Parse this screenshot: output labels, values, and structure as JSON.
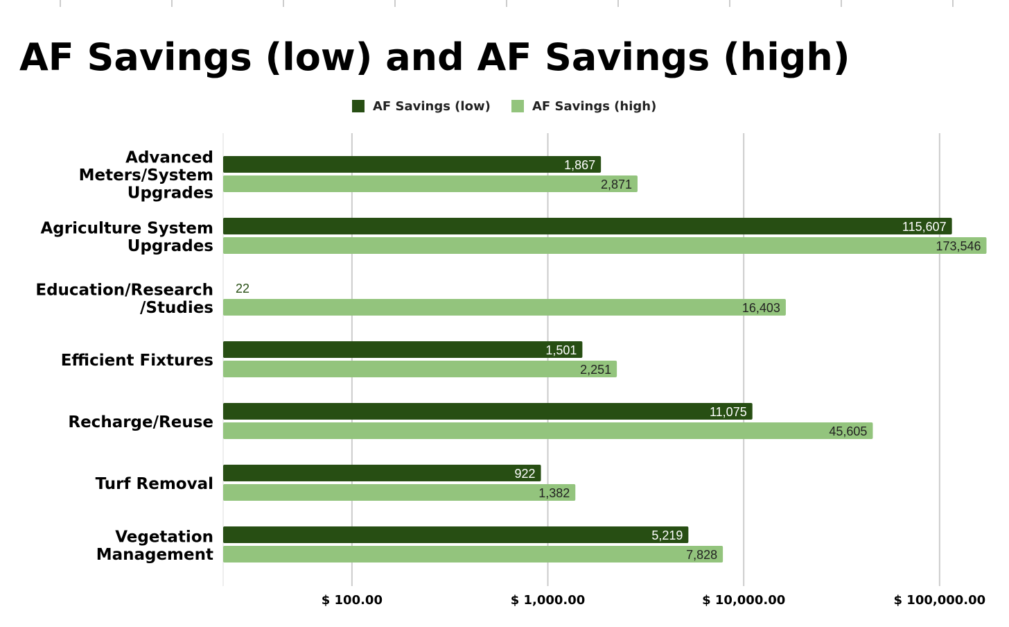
{
  "chart_data": {
    "type": "bar",
    "orientation": "horizontal",
    "title": "AF Savings (low) and AF Savings (high)",
    "xscale": "log",
    "xlim": [
      22,
      180000
    ],
    "xticks": [
      100,
      1000,
      10000,
      100000
    ],
    "xtick_labels": [
      "$ 100.00",
      "$ 1,000.00",
      "$ 10,000.00",
      "$ 100,000.00"
    ],
    "grid": true,
    "legend_position": "top-center",
    "categories": [
      [
        "Advanced",
        "Meters/System",
        "Upgrades"
      ],
      [
        "Agriculture System",
        "Upgrades"
      ],
      [
        "Education/Research",
        "/Studies"
      ],
      [
        "Efficient Fixtures"
      ],
      [
        "Recharge/Reuse"
      ],
      [
        "Turf Removal"
      ],
      [
        "Vegetation",
        "Management"
      ]
    ],
    "series": [
      {
        "name": "AF Savings (low)",
        "color": "#274e13",
        "values": [
          1867,
          115607,
          22,
          1501,
          11075,
          922,
          5219
        ],
        "labels": [
          "1,867",
          "115,607",
          "22",
          "1,501",
          "11,075",
          "922",
          "5,219"
        ]
      },
      {
        "name": "AF Savings (high)",
        "color": "#93c47d",
        "values": [
          2871,
          173546,
          16403,
          2251,
          45605,
          1382,
          7828
        ],
        "labels": [
          "2,871",
          "173,546",
          "16,403",
          "2,251",
          "45,605",
          "1,382",
          "7,828"
        ]
      }
    ]
  }
}
